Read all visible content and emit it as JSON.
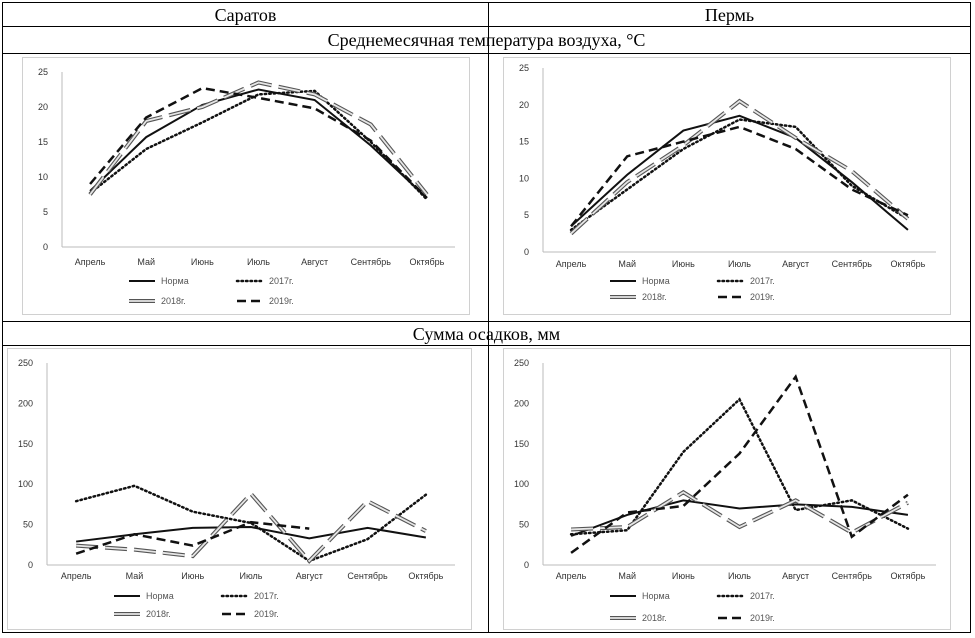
{
  "table": {
    "col1": "Саратов",
    "col2": "Пермь",
    "row1": "Среднемесячная температура воздуха, °C",
    "row2": "Сумма осадков, мм"
  },
  "legend": {
    "norma": "Норма",
    "y2017": "2017г.",
    "y2018": "2018г.",
    "y2019": "2019г."
  },
  "chart_data": [
    {
      "id": "saratov-temp",
      "type": "line",
      "title": "Саратов — Среднемесячная температура воздуха, °C",
      "categories": [
        "Апрель",
        "Май",
        "Июнь",
        "Июль",
        "Август",
        "Сентябрь",
        "Октябрь"
      ],
      "ylim": [
        0,
        25
      ],
      "yticks": [
        0,
        5,
        10,
        15,
        20,
        25
      ],
      "series": [
        {
          "name": "Норма",
          "style": "solid",
          "values": [
            8.0,
            15.7,
            20.3,
            22.5,
            21.0,
            14.5,
            7.0
          ]
        },
        {
          "name": "2017г.",
          "style": "dotted",
          "values": [
            7.7,
            14.0,
            17.8,
            21.8,
            22.3,
            15.0,
            6.8
          ]
        },
        {
          "name": "2018г.",
          "style": "double",
          "values": [
            7.5,
            18.0,
            20.0,
            23.5,
            21.8,
            17.5,
            7.5
          ]
        },
        {
          "name": "2019г.",
          "style": "dashed",
          "values": [
            9.0,
            18.5,
            22.7,
            21.3,
            19.8,
            15.2,
            7.0
          ]
        }
      ]
    },
    {
      "id": "perm-temp",
      "type": "line",
      "title": "Пермь — Среднемесячная температура воздуха, °C",
      "categories": [
        "Апрель",
        "Май",
        "Июнь",
        "Июль",
        "Август",
        "Сентябрь",
        "Октябрь"
      ],
      "ylim": [
        0,
        25
      ],
      "yticks": [
        0,
        5,
        10,
        15,
        20,
        25
      ],
      "series": [
        {
          "name": "Норма",
          "style": "solid",
          "values": [
            3.5,
            10.5,
            16.5,
            18.5,
            15.5,
            9.5,
            3.0
          ]
        },
        {
          "name": "2017г.",
          "style": "dotted",
          "values": [
            3.0,
            8.5,
            14.0,
            18.0,
            17.0,
            9.0,
            4.5
          ]
        },
        {
          "name": "2018г.",
          "style": "double",
          "values": [
            2.5,
            9.5,
            14.5,
            20.5,
            15.5,
            11.0,
            4.5
          ]
        },
        {
          "name": "2019г.",
          "style": "dashed",
          "values": [
            3.5,
            13.0,
            15.0,
            17.0,
            14.0,
            8.5,
            5.0
          ]
        }
      ]
    },
    {
      "id": "saratov-precip",
      "type": "line",
      "title": "Саратов — Сумма осадков, мм",
      "categories": [
        "Апрель",
        "Май",
        "Июнь",
        "Июль",
        "Август",
        "Сентябрь",
        "Октябрь"
      ],
      "ylim": [
        0,
        250
      ],
      "yticks": [
        0,
        50,
        100,
        150,
        200,
        250
      ],
      "series": [
        {
          "name": "Норма",
          "style": "solid",
          "values": [
            29,
            38,
            46,
            47,
            33,
            46,
            34
          ]
        },
        {
          "name": "2017г.",
          "style": "dotted",
          "values": [
            79,
            98,
            66,
            52,
            5,
            32,
            87
          ]
        },
        {
          "name": "2018г.",
          "style": "double",
          "values": [
            24,
            19,
            11,
            88,
            5,
            79,
            42
          ]
        },
        {
          "name": "2019г.",
          "style": "dashed",
          "values": [
            14,
            38,
            24,
            53,
            45,
            null,
            null
          ]
        }
      ]
    },
    {
      "id": "perm-precip",
      "type": "line",
      "title": "Пермь — Сумма осадков, мм",
      "categories": [
        "Апрель",
        "Май",
        "Июнь",
        "Июль",
        "Август",
        "Сентябрь",
        "Октябрь"
      ],
      "ylim": [
        0,
        250
      ],
      "yticks": [
        0,
        50,
        100,
        150,
        200,
        250
      ],
      "series": [
        {
          "name": "Норма",
          "style": "solid",
          "values": [
            36,
            62,
            80,
            70,
            75,
            72,
            62
          ]
        },
        {
          "name": "2017г.",
          "style": "dotted",
          "values": [
            38,
            43,
            140,
            205,
            68,
            80,
            45
          ]
        },
        {
          "name": "2018г.",
          "style": "double",
          "values": [
            44,
            47,
            90,
            47,
            80,
            40,
            77
          ]
        },
        {
          "name": "2019г.",
          "style": "dashed",
          "values": [
            15,
            65,
            73,
            138,
            233,
            35,
            87
          ]
        }
      ]
    }
  ]
}
